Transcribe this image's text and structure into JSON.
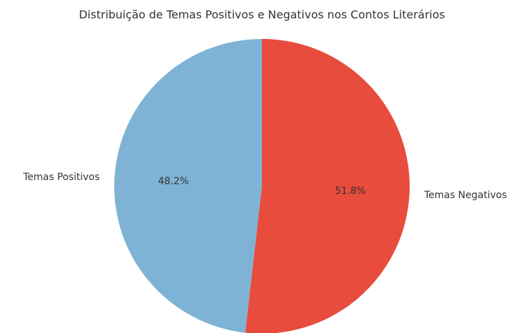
{
  "chart_data": {
    "type": "pie",
    "title": "Distribuição de Temas Positivos e Negativos nos Contos Literários",
    "categories": [
      "Temas Positivos",
      "Temas Negativos"
    ],
    "values": [
      48.2,
      51.8
    ],
    "value_labels": [
      "48.2%",
      "51.8%"
    ],
    "colors": [
      "#7fb3d5",
      "#e74c3c"
    ]
  }
}
